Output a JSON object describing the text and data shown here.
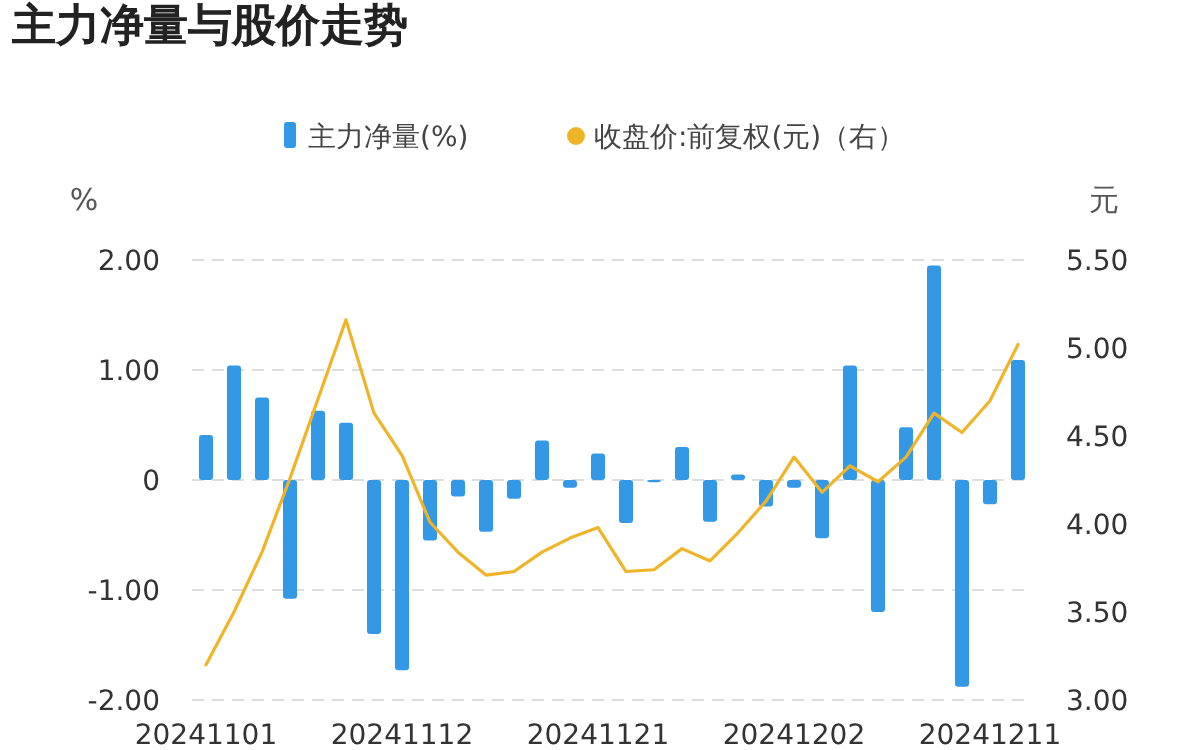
{
  "chart_data": {
    "type": "bar",
    "title": "主力净量与股价走势",
    "ylabel": "%",
    "y2label": "元",
    "categories": [
      "20241101",
      null,
      null,
      null,
      null,
      null,
      null,
      "20241112",
      null,
      null,
      null,
      null,
      null,
      null,
      "20241121",
      null,
      null,
      null,
      null,
      null,
      null,
      "20241202",
      null,
      null,
      null,
      null,
      null,
      null,
      "20241211",
      null
    ],
    "series": [
      {
        "name": "主力净量(%)",
        "color": "#3399e6",
        "values": [
          0.41,
          1.04,
          0.75,
          -1.08,
          0.63,
          0.52,
          -1.4,
          -1.73,
          -0.55,
          -0.15,
          -0.47,
          -0.17,
          0.36,
          -0.07,
          0.24,
          -0.39,
          -0.02,
          0.3,
          -0.38,
          0.05,
          -0.24,
          -0.07,
          -0.53,
          1.04,
          -1.2,
          0.48,
          1.95,
          -1.88,
          -0.22,
          1.09
        ]
      },
      {
        "name": "收盘价:前复权(元)（右）",
        "type": "line",
        "axis": "y2",
        "color": "#f0b429",
        "values": [
          3.2,
          3.5,
          3.84,
          4.26,
          4.71,
          5.16,
          4.63,
          4.39,
          4.01,
          3.84,
          3.71,
          3.73,
          3.84,
          3.92,
          3.98,
          3.73,
          3.74,
          3.86,
          3.79,
          3.95,
          4.13,
          4.38,
          4.18,
          4.33,
          4.24,
          4.38,
          4.63,
          4.52,
          4.7,
          5.02
        ]
      }
    ],
    "ylim": [
      -2,
      2
    ],
    "yticks": [
      {
        "value": -2,
        "label": "-2.00"
      },
      {
        "value": -1,
        "label": "-1.00"
      },
      0,
      {
        "value": 1,
        "label": "1.00"
      },
      {
        "value": 2,
        "label": "2.00"
      }
    ],
    "y2lim": [
      3,
      5.5
    ],
    "y2ticks": [
      {
        "value": 3,
        "label": "3.00"
      },
      {
        "value": 3.5,
        "label": "3.50"
      },
      {
        "value": 4,
        "label": "4.00"
      },
      {
        "value": 4.5,
        "label": "4.50"
      },
      {
        "value": 5,
        "label": "5.00"
      },
      {
        "value": 5.5,
        "label": "5.50"
      }
    ],
    "grid": "y",
    "legend": "top",
    "marker": "none",
    "line_style": "solid"
  }
}
